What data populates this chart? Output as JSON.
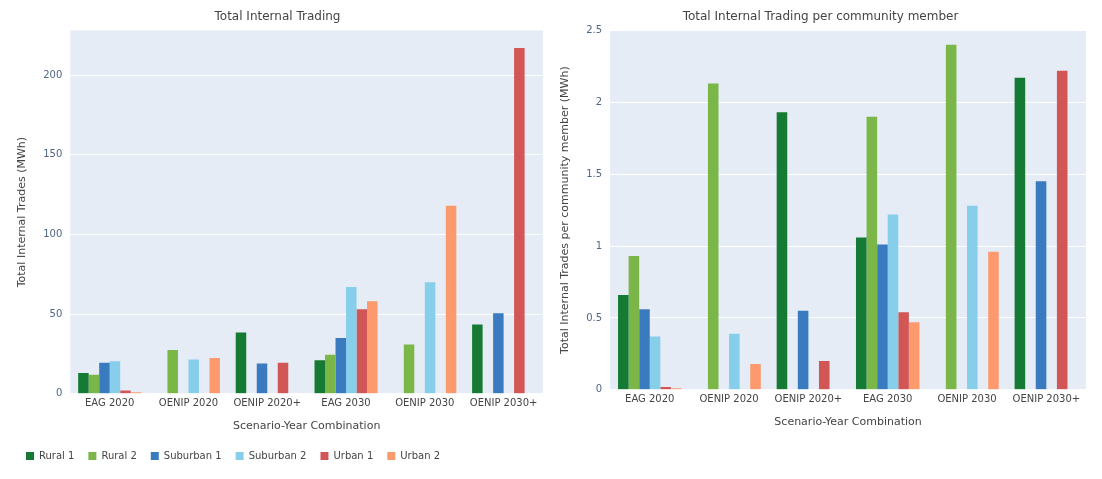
{
  "chart_data": [
    {
      "type": "bar",
      "title": "Total Internal Trading",
      "xlabel": "Scenario-Year Combination",
      "ylabel": "Total Internal Trades (MWh)",
      "categories": [
        "EAG 2020",
        "OENIP 2020",
        "OENIP 2020+",
        "EAG 2030",
        "OENIP 2030",
        "OENIP 2030+"
      ],
      "series": [
        {
          "name": "Rural 1",
          "color": "#157a33",
          "values": [
            13,
            null,
            38.5,
            21,
            null,
            43.5
          ]
        },
        {
          "name": "Rural 2",
          "color": "#7ab648",
          "values": [
            12,
            27.5,
            null,
            24.5,
            31,
            null
          ]
        },
        {
          "name": "Suburban 1",
          "color": "#3a7bbf",
          "values": [
            19.5,
            null,
            19,
            35,
            null,
            50.5
          ]
        },
        {
          "name": "Suburban 2",
          "color": "#87ceeb",
          "values": [
            20.5,
            21.5,
            null,
            67,
            70,
            null
          ]
        },
        {
          "name": "Urban 1",
          "color": "#d35656",
          "values": [
            2,
            null,
            19.5,
            53,
            null,
            217
          ]
        },
        {
          "name": "Urban 2",
          "color": "#fc9a6e",
          "values": [
            1,
            22.5,
            null,
            58,
            118,
            null
          ]
        }
      ],
      "ylim": [
        0,
        228
      ],
      "yticks": [
        0,
        50,
        100,
        150,
        200
      ],
      "grid": "y",
      "legend": "bottom left"
    },
    {
      "type": "bar",
      "title": "Total Internal Trading per community member",
      "xlabel": "Scenario-Year Combination",
      "ylabel": "Total Internal Trades per community member (MWh)",
      "categories": [
        "EAG 2020",
        "OENIP 2020",
        "OENIP 2020+",
        "EAG 2030",
        "OENIP 2030",
        "OENIP 2030+"
      ],
      "series": [
        {
          "color": "#157a33",
          "values": [
            0.66,
            null,
            1.93,
            1.06,
            null,
            2.17
          ]
        },
        {
          "color": "#7ab648",
          "values": [
            0.93,
            2.13,
            null,
            1.9,
            2.4,
            null
          ]
        },
        {
          "color": "#3a7bbf",
          "values": [
            0.56,
            null,
            0.55,
            1.01,
            null,
            1.45
          ]
        },
        {
          "color": "#87ceeb",
          "values": [
            0.37,
            0.39,
            null,
            1.22,
            1.28,
            null
          ]
        },
        {
          "color": "#d35656",
          "values": [
            0.02,
            null,
            0.2,
            0.54,
            null,
            2.22
          ]
        },
        {
          "color": "#fc9a6e",
          "values": [
            0.01,
            0.18,
            null,
            0.47,
            0.96,
            null
          ]
        }
      ],
      "ylim": [
        0,
        2.5
      ],
      "yticks": [
        0,
        0.5,
        1,
        1.5,
        2,
        2.5
      ],
      "grid": "y",
      "legend": false
    }
  ]
}
